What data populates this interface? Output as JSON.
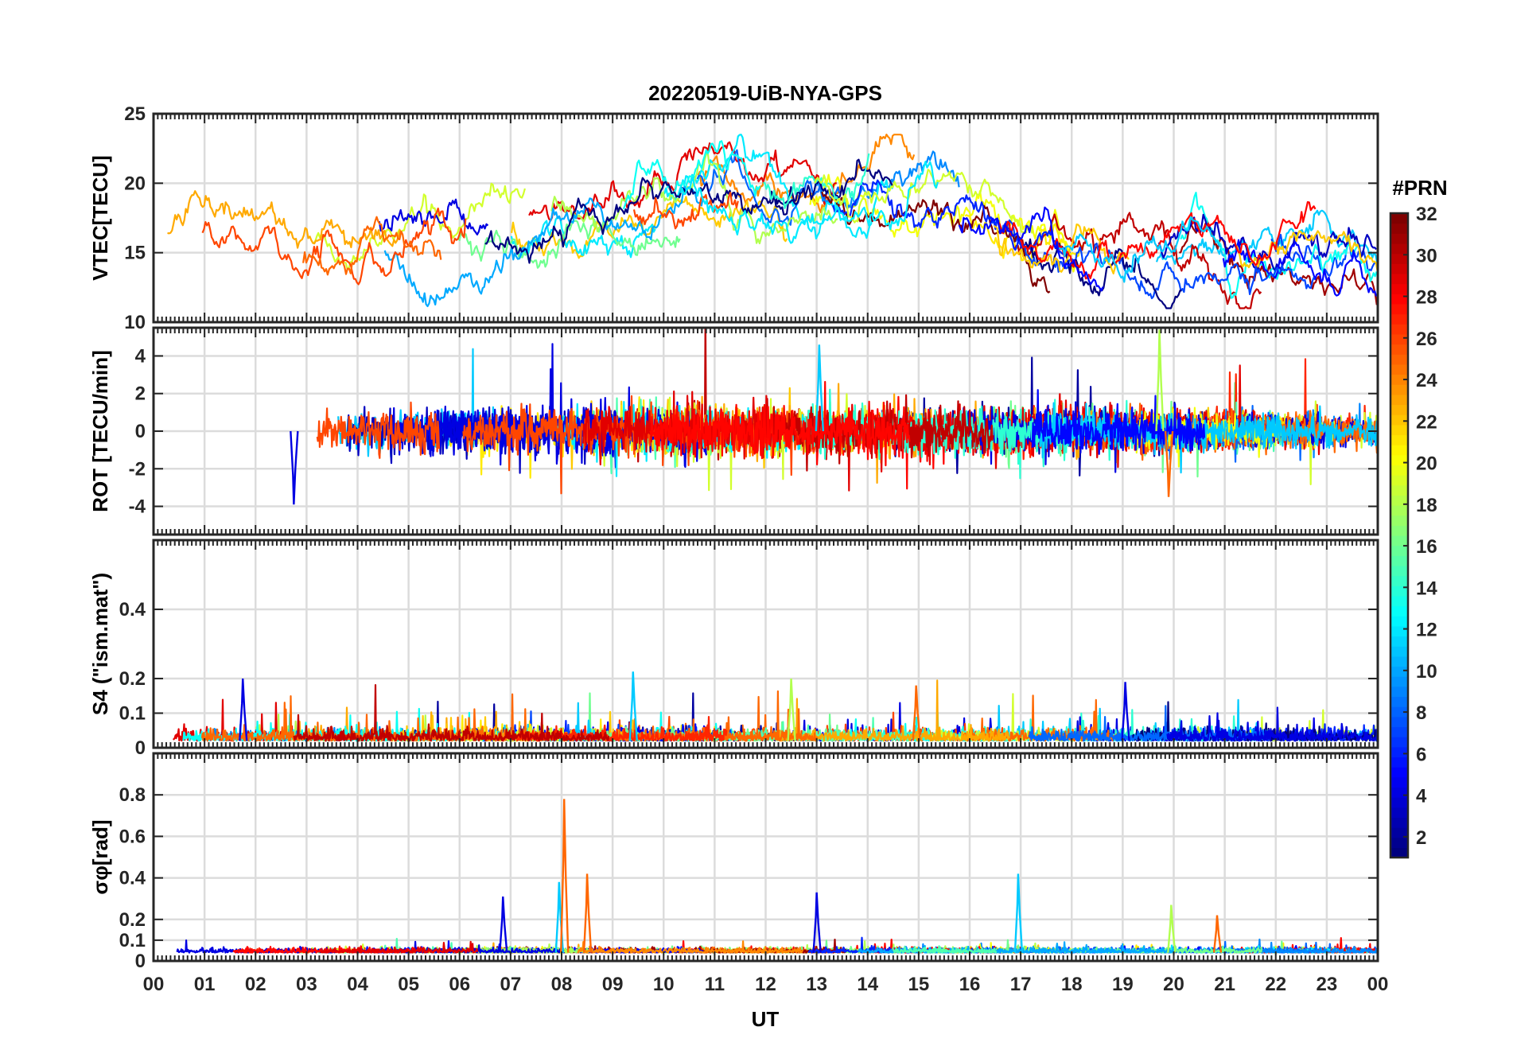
{
  "figure": {
    "title": "20220519-UiB-NYA-GPS",
    "xlabel": "UT"
  },
  "colorbar": {
    "label": "#PRN",
    "tick_labels": [
      "2",
      "4",
      "6",
      "8",
      "10",
      "12",
      "14",
      "16",
      "18",
      "20",
      "22",
      "24",
      "26",
      "28",
      "30",
      "32"
    ],
    "range": [
      1,
      32
    ],
    "colormap": "jet"
  },
  "chart_data": [
    {
      "type": "line",
      "panel": "vtec",
      "ylabel": "VTEC[TECU]",
      "xlim": [
        0,
        24
      ],
      "ylim": [
        10,
        25
      ],
      "x_tick_labels": [
        "00",
        "01",
        "02",
        "03",
        "04",
        "05",
        "06",
        "07",
        "08",
        "09",
        "10",
        "11",
        "12",
        "13",
        "14",
        "15",
        "16",
        "17",
        "18",
        "19",
        "20",
        "21",
        "22",
        "23",
        "00"
      ],
      "y_ticks": [
        10,
        15,
        20,
        25
      ],
      "y_tick_labels": [
        "10",
        "15",
        "20",
        "25"
      ],
      "grid": true,
      "mean_profile": {
        "x": [
          0,
          1,
          2,
          3,
          4,
          5,
          6,
          7,
          8,
          9,
          10,
          11,
          12,
          13,
          14,
          15,
          16,
          17,
          18,
          19,
          20,
          21,
          22,
          23,
          24
        ],
        "y": [
          16,
          16.5,
          16,
          15,
          15.5,
          16.5,
          16,
          16.5,
          17,
          17.5,
          19,
          19.5,
          19,
          19,
          19,
          19.5,
          18,
          16,
          15,
          15.5,
          15.5,
          15.5,
          15.5,
          15,
          14.5
        ]
      },
      "value_range": [
        11,
        23.5
      ]
    },
    {
      "type": "line",
      "panel": "rot",
      "ylabel": "ROT [TECU/min]",
      "xlim": [
        0,
        24
      ],
      "ylim": [
        -5.5,
        5.5
      ],
      "y_ticks": [
        -4,
        -2,
        0,
        2,
        4
      ],
      "y_tick_labels": [
        "-4",
        "-2",
        "0",
        "2",
        "4"
      ],
      "grid": true,
      "notable_spikes": [
        {
          "x": 2.75,
          "y": -3.9
        },
        {
          "x": 13.05,
          "y": 4.6
        },
        {
          "x": 19.72,
          "y": 5.4
        },
        {
          "x": 19.9,
          "y": -3.5
        }
      ]
    },
    {
      "type": "line",
      "panel": "s4",
      "ylabel": "S4 (\"ism.mat\")",
      "xlim": [
        0,
        24
      ],
      "ylim": [
        0,
        0.6
      ],
      "y_ticks": [
        0,
        0.1,
        0.2,
        0.4
      ],
      "y_tick_labels": [
        "0",
        "0.1",
        "0.2",
        "0.4"
      ],
      "grid": true,
      "notable_peaks": [
        {
          "x": 1.75,
          "y": 0.2
        },
        {
          "x": 9.4,
          "y": 0.22
        },
        {
          "x": 12.5,
          "y": 0.2
        },
        {
          "x": 14.95,
          "y": 0.18
        },
        {
          "x": 19.05,
          "y": 0.19
        }
      ]
    },
    {
      "type": "line",
      "panel": "sigma_phi",
      "ylabel": "σφ[rad]",
      "xlim": [
        0,
        24
      ],
      "ylim": [
        0,
        1.0
      ],
      "y_ticks": [
        0,
        0.1,
        0.2,
        0.4,
        0.6,
        0.8
      ],
      "y_tick_labels": [
        "0",
        "0.1",
        "0.2",
        "0.4",
        "0.6",
        "0.8"
      ],
      "grid": true,
      "notable_peaks": [
        {
          "x": 6.85,
          "y": 0.31
        },
        {
          "x": 7.95,
          "y": 0.38
        },
        {
          "x": 8.05,
          "y": 0.78
        },
        {
          "x": 8.5,
          "y": 0.42
        },
        {
          "x": 13.0,
          "y": 0.33
        },
        {
          "x": 16.95,
          "y": 0.42
        },
        {
          "x": 19.95,
          "y": 0.27
        },
        {
          "x": 20.85,
          "y": 0.22
        }
      ]
    }
  ]
}
